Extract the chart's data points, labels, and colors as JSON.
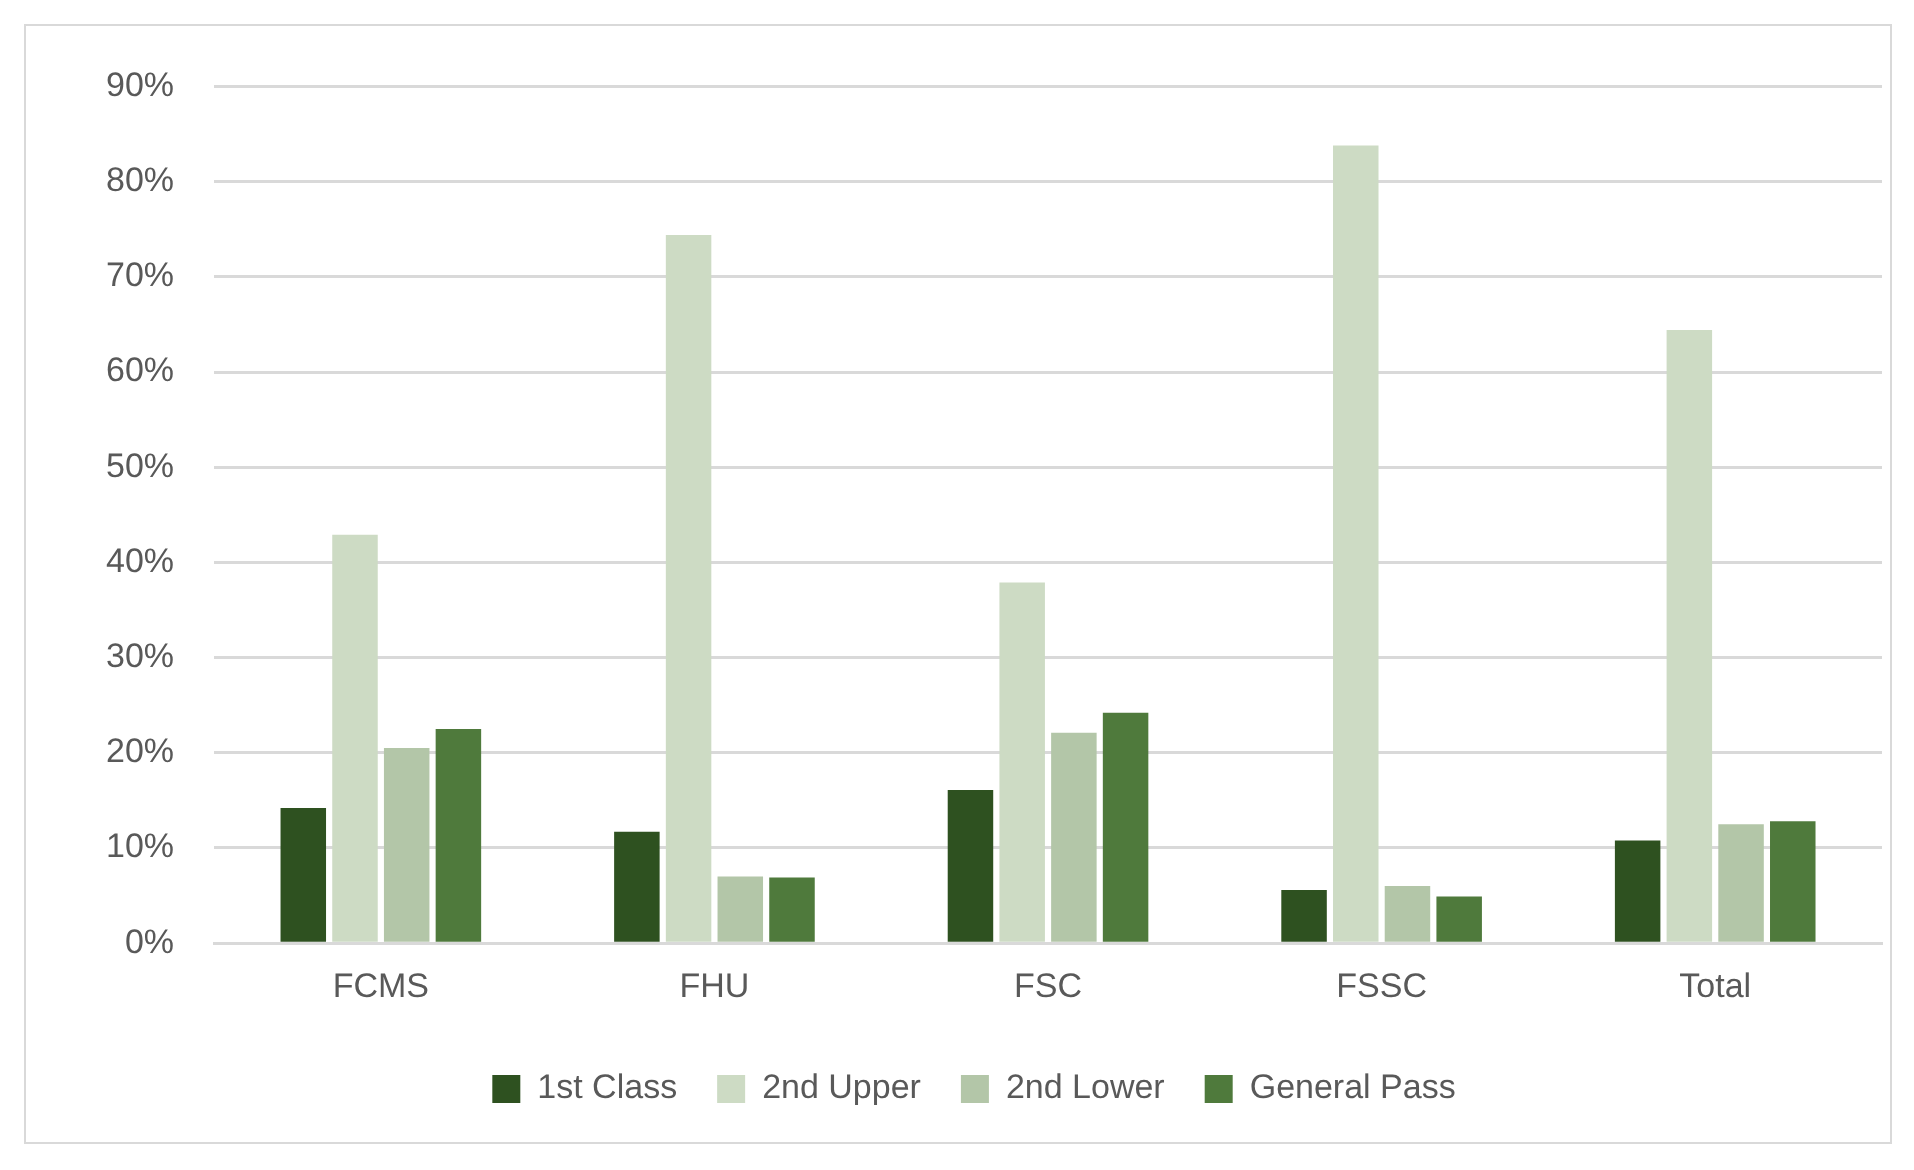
{
  "chart_data": {
    "type": "bar",
    "categories": [
      "FCMS",
      "FHU",
      "FSC",
      "FSSC",
      "Total"
    ],
    "series": [
      {
        "name": "1st Class",
        "color": "#2e5120",
        "values": [
          14.2,
          11.7,
          16.1,
          5.6,
          10.8
        ]
      },
      {
        "name": "2nd Upper",
        "color": "#cddbc4",
        "values": [
          42.9,
          74.4,
          37.9,
          83.8,
          64.4
        ]
      },
      {
        "name": "2nd Lower",
        "color": "#b3c6a8",
        "values": [
          20.5,
          7.0,
          22.1,
          6.0,
          12.5
        ]
      },
      {
        "name": "General Pass",
        "color": "#4f7a3c",
        "values": [
          22.5,
          6.9,
          24.2,
          4.9,
          12.8
        ]
      }
    ],
    "ylim": [
      0,
      90
    ],
    "yticks": [
      {
        "value": 0,
        "label": "0%"
      },
      {
        "value": 10,
        "label": "10%"
      },
      {
        "value": 20,
        "label": "20%"
      },
      {
        "value": 30,
        "label": "30%"
      },
      {
        "value": 40,
        "label": "40%"
      },
      {
        "value": 50,
        "label": "50%"
      },
      {
        "value": 60,
        "label": "60%"
      },
      {
        "value": 70,
        "label": "70%"
      },
      {
        "value": 80,
        "label": "80%"
      },
      {
        "value": 90,
        "label": "90%"
      }
    ],
    "grid": "y",
    "legend": "bottom"
  }
}
